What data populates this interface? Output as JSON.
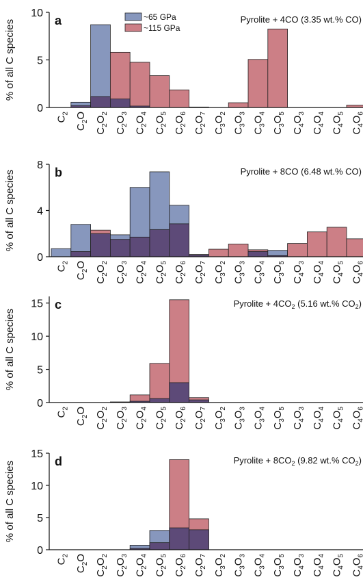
{
  "colors": {
    "gpa65": "#8797bd",
    "gpa115": "#cc7f86",
    "overlap": "#5d4a78",
    "edge": "#222222"
  },
  "legend": {
    "gpa65": "~65 GPa",
    "gpa115": "~115 GPa"
  },
  "chart_data": [
    {
      "type": "bar",
      "panel": "a",
      "annotation": "Pyrolite + 4CO (3.35 wt.% CO)",
      "ylabel": "% of all C species",
      "ylim": [
        0,
        10
      ],
      "yticks": [
        0,
        5,
        10
      ],
      "categories": [
        "C2",
        "C2O",
        "C2O2",
        "C2O3",
        "C2O4",
        "C2O5",
        "C2O6",
        "C2O7",
        "C3O2",
        "C3O3",
        "C3O4",
        "C3O5",
        "C4O3",
        "C4O4",
        "C4O5",
        "C4O6"
      ],
      "series": [
        {
          "name": "~65 GPa",
          "values": [
            0,
            0.55,
            8.7,
            0.9,
            0.15,
            0,
            0,
            0,
            0,
            0,
            0,
            0,
            0,
            0,
            0,
            0
          ]
        },
        {
          "name": "~115 GPa",
          "values": [
            0,
            0.2,
            1.15,
            5.8,
            4.75,
            3.35,
            1.85,
            0.05,
            0,
            0.5,
            5.05,
            8.25,
            0,
            0,
            0,
            0.25
          ]
        }
      ]
    },
    {
      "type": "bar",
      "panel": "b",
      "annotation": "Pyrolite + 8CO (6.48 wt.% CO)",
      "ylabel": "% of all C species",
      "ylim": [
        0,
        8
      ],
      "yticks": [
        0,
        4,
        8
      ],
      "categories": [
        "C2",
        "C2O",
        "C2O2",
        "C2O3",
        "C2O4",
        "C2O5",
        "C2O6",
        "C2O7",
        "C3O2",
        "C3O3",
        "C3O4",
        "C3O5",
        "C4O3",
        "C4O4",
        "C4O5",
        "C4O6"
      ],
      "series": [
        {
          "name": "~65 GPa",
          "values": [
            0.7,
            2.8,
            2.0,
            1.9,
            6.0,
            7.35,
            4.45,
            0.15,
            0,
            0,
            0.45,
            0.55,
            0,
            0,
            0,
            0
          ]
        },
        {
          "name": "~115 GPa",
          "values": [
            0,
            0.45,
            2.3,
            1.5,
            1.7,
            2.35,
            2.85,
            0.2,
            0.65,
            1.1,
            0.6,
            0.1,
            1.15,
            2.15,
            2.55,
            1.55
          ]
        }
      ]
    },
    {
      "type": "bar",
      "panel": "c",
      "annotation": "Pyrolite + 4CO₂ (5.16 wt.% CO₂)",
      "ylabel": "% of all C species",
      "ylim": [
        0,
        16
      ],
      "yticks": [
        0,
        5,
        10,
        15
      ],
      "categories": [
        "C2",
        "C2O",
        "C2O2",
        "C2O3",
        "C2O4",
        "C2O5",
        "C2O6",
        "C2O7",
        "C3O2",
        "C3O3",
        "C3O4",
        "C3O5",
        "C4O3",
        "C4O4",
        "C4O5",
        "C4O6"
      ],
      "series": [
        {
          "name": "~65 GPa",
          "values": [
            0,
            0,
            0,
            0.05,
            0.2,
            0.6,
            3.0,
            0.4,
            0,
            0,
            0,
            0,
            0,
            0,
            0,
            0
          ]
        },
        {
          "name": "~115 GPa",
          "values": [
            0,
            0,
            0,
            0.1,
            1.15,
            5.9,
            15.5,
            0.75,
            0,
            0,
            0,
            0,
            0,
            0,
            0,
            0
          ]
        }
      ]
    },
    {
      "type": "bar",
      "panel": "d",
      "annotation": "Pyrolite + 8CO₂ (9.82 wt.% CO₂)",
      "ylabel": "% of all C species",
      "ylim": [
        0,
        15
      ],
      "yticks": [
        0,
        5,
        10,
        15
      ],
      "categories": [
        "C2",
        "C2O",
        "C2O2",
        "C2O3",
        "C2O4",
        "C2O5",
        "C2O6",
        "C2O7",
        "C3O2",
        "C3O3",
        "C3O4",
        "C3O5",
        "C4O3",
        "C4O4",
        "C4O5",
        "C4O6"
      ],
      "series": [
        {
          "name": "~65 GPa",
          "values": [
            0,
            0,
            0,
            0,
            0.7,
            3.0,
            3.4,
            3.1,
            0,
            0,
            0,
            0,
            0,
            0,
            0,
            0
          ]
        },
        {
          "name": "~115 GPa",
          "values": [
            0,
            0,
            0,
            0,
            0.2,
            1.1,
            14.0,
            4.8,
            0,
            0,
            0,
            0,
            0,
            0,
            0,
            0
          ]
        }
      ]
    }
  ]
}
